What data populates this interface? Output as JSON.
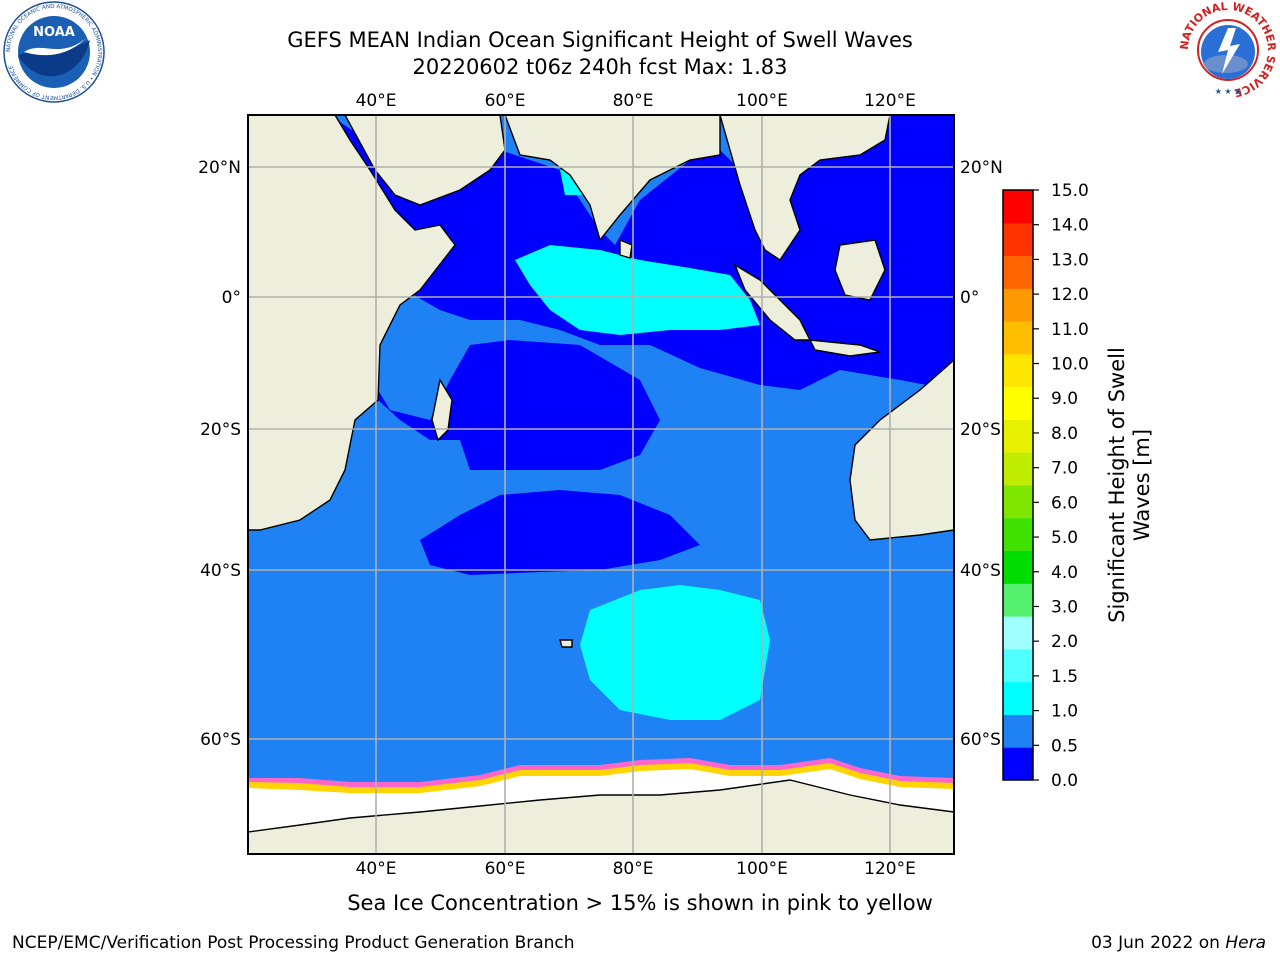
{
  "header": {
    "title_line1": "GEFS MEAN Indian Ocean Significant Height of Swell Waves",
    "title_line2": "20220602 t06z 240h fcst   Max: 1.83"
  },
  "map": {
    "lon_labels": [
      "40°E",
      "60°E",
      "80°E",
      "100°E",
      "120°E"
    ],
    "lon_values": [
      40,
      60,
      80,
      100,
      120
    ],
    "lat_labels": [
      "20°N",
      "0°",
      "20°S",
      "40°S",
      "60°S"
    ],
    "lat_values": [
      20,
      0,
      -20,
      -40,
      -60
    ],
    "extent": {
      "lon_min": 20,
      "lon_max": 129,
      "lat_min": -71,
      "lat_max": 29
    },
    "colors": {
      "land": "#eeeedd",
      "ocean_low": "#0000ff",
      "ocean_mid": "#1e82f5",
      "swell_1_1_5": "#00ffff",
      "ice": "#ffffff",
      "gridline": "#b0b0b0"
    }
  },
  "colorbar": {
    "label": "Significant Height of Swell Waves [m]",
    "levels": [
      "0.0",
      "0.5",
      "1.0",
      "1.5",
      "2.0",
      "3.0",
      "4.0",
      "5.0",
      "6.0",
      "7.0",
      "8.0",
      "9.0",
      "10.0",
      "11.0",
      "12.0",
      "13.0",
      "14.0",
      "15.0"
    ],
    "colors": [
      "#0000ff",
      "#1e82f5",
      "#00ffff",
      "#50ffff",
      "#a0ffff",
      "#55f06e",
      "#00dc00",
      "#40e000",
      "#7fe600",
      "#bfec00",
      "#e6f000",
      "#ffff00",
      "#ffe600",
      "#ffbf00",
      "#ff9900",
      "#ff6600",
      "#ff3300",
      "#ff0000"
    ]
  },
  "footer": {
    "caption": "Sea Ice Concentration > 15% is shown in pink to yellow",
    "credit": "NCEP/EMC/Verification Post Processing Product Generation Branch",
    "date": "03 Jun 2022 on ",
    "machine": "Hera"
  },
  "logos": {
    "noaa_text": "NOAA",
    "noaa_ring": "NATIONAL OCEANIC AND ATMOSPHERIC ADMINISTRATION • U.S. DEPARTMENT OF COMMERCE",
    "nws_ring": "NATIONAL WEATHER SERVICE"
  }
}
